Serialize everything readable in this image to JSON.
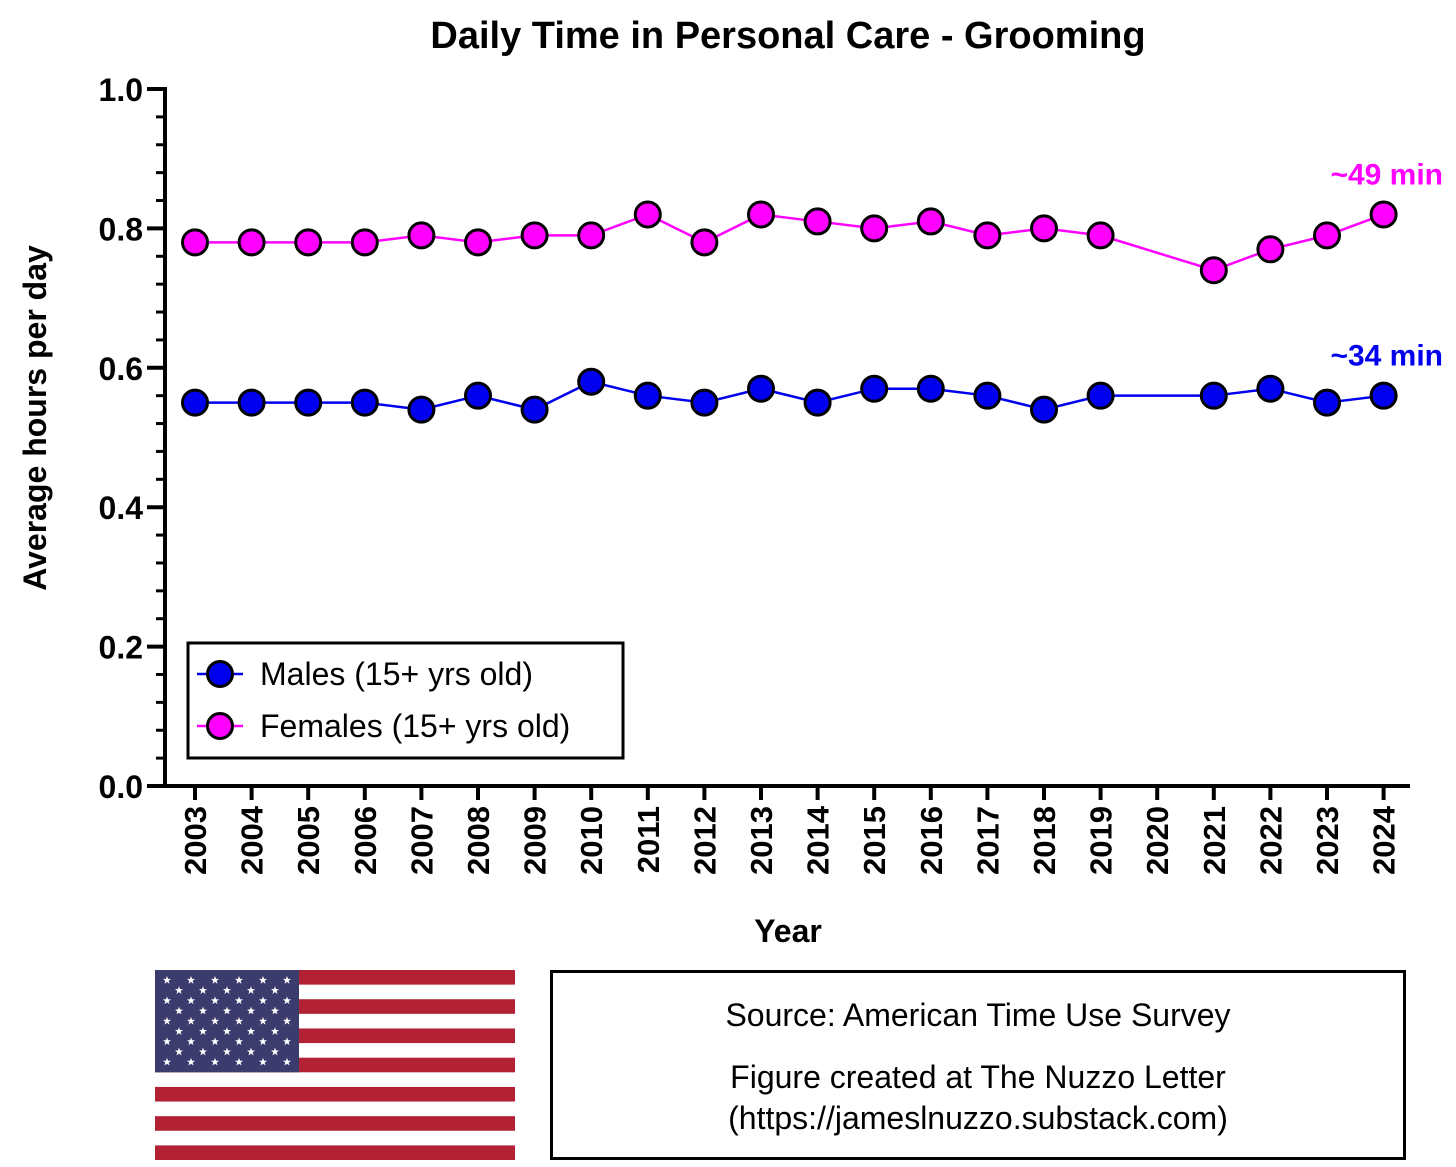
{
  "chart_data": {
    "type": "line",
    "title": "Daily Time in Personal Care - Grooming",
    "xlabel": "Year",
    "ylabel": "Average hours per day",
    "ylim": [
      0,
      1.0
    ],
    "y_ticks": [
      "0.0",
      "0.2",
      "0.4",
      "0.6",
      "0.8",
      "1.0"
    ],
    "categories": [
      "2003",
      "2004",
      "2005",
      "2006",
      "2007",
      "2008",
      "2009",
      "2010",
      "2011",
      "2012",
      "2013",
      "2014",
      "2015",
      "2016",
      "2017",
      "2018",
      "2019",
      "2020",
      "2021",
      "2022",
      "2023",
      "2024"
    ],
    "series": [
      {
        "name": "Males (15+ yrs old)",
        "color": "#0000ee",
        "values": [
          0.55,
          0.55,
          0.55,
          0.55,
          0.54,
          0.56,
          0.54,
          0.58,
          0.56,
          0.55,
          0.57,
          0.55,
          0.57,
          0.57,
          0.56,
          0.54,
          0.56,
          null,
          0.56,
          0.57,
          0.55,
          0.56
        ],
        "end_label": "~34 min"
      },
      {
        "name": "Females (15+ yrs old)",
        "color": "#ff00ff",
        "values": [
          0.78,
          0.78,
          0.78,
          0.78,
          0.79,
          0.78,
          0.79,
          0.79,
          0.82,
          0.78,
          0.82,
          0.81,
          0.8,
          0.81,
          0.79,
          0.8,
          0.79,
          null,
          0.74,
          0.77,
          0.79,
          0.82
        ],
        "end_label": "~49 min"
      }
    ],
    "legend_position": "bottom-left"
  },
  "footer": {
    "source_line": "Source: American Time Use Survey",
    "credit_line": "Figure created at The Nuzzo Letter",
    "url_line": "(https://jameslnuzzo.substack.com)"
  },
  "flag": {
    "name": "united-states-flag",
    "red": "#b22234",
    "white": "#ffffff",
    "blue": "#3c3b6e"
  }
}
